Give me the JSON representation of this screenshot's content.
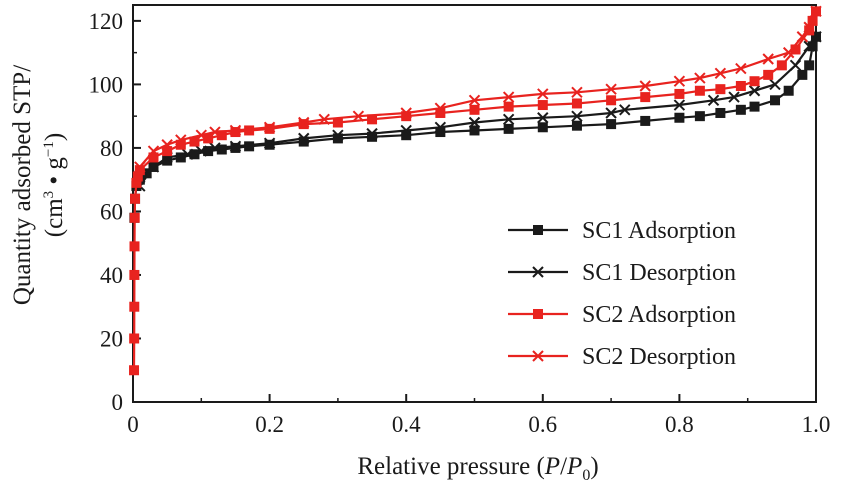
{
  "chart_data": {
    "type": "line",
    "xlabel": {
      "prefix": "Relative pressure (",
      "p": "P",
      "slash": "/",
      "p0": "P",
      "sub0": "0",
      "suffix": ")"
    },
    "ylabel": {
      "line1": "Quantity adsorbed STP/",
      "line2_prefix": "(cm",
      "sup3": "3",
      "line2_mid": " • g",
      "supm1": "−1",
      "line2_suffix": ")"
    },
    "xlim": [
      0,
      1.0
    ],
    "ylim": [
      0,
      125
    ],
    "xticks": [
      "0",
      "0.2",
      "0.4",
      "0.6",
      "0.8",
      "1.0"
    ],
    "xtick_values": [
      0,
      0.2,
      0.4,
      0.6,
      0.8,
      1.0
    ],
    "yticks": [
      "0",
      "20",
      "40",
      "60",
      "80",
      "100",
      "120"
    ],
    "ytick_values": [
      0,
      20,
      40,
      60,
      80,
      100,
      120
    ],
    "legend_position": "bottom-right",
    "grid": false,
    "series": [
      {
        "name": "SC1 Adsorption",
        "color": "#1a1a1a",
        "marker": "square",
        "points": [
          [
            0.002,
            58
          ],
          [
            0.003,
            64
          ],
          [
            0.005,
            68
          ],
          [
            0.01,
            70
          ],
          [
            0.02,
            72
          ],
          [
            0.03,
            74
          ],
          [
            0.05,
            76
          ],
          [
            0.07,
            77
          ],
          [
            0.09,
            78
          ],
          [
            0.11,
            79
          ],
          [
            0.13,
            79.5
          ],
          [
            0.15,
            80
          ],
          [
            0.17,
            80.5
          ],
          [
            0.2,
            81
          ],
          [
            0.25,
            82
          ],
          [
            0.3,
            83
          ],
          [
            0.35,
            83.5
          ],
          [
            0.4,
            84
          ],
          [
            0.45,
            85
          ],
          [
            0.5,
            85.5
          ],
          [
            0.55,
            86
          ],
          [
            0.6,
            86.5
          ],
          [
            0.65,
            87
          ],
          [
            0.7,
            87.5
          ],
          [
            0.75,
            88.5
          ],
          [
            0.8,
            89.5
          ],
          [
            0.83,
            90
          ],
          [
            0.86,
            91
          ],
          [
            0.89,
            92
          ],
          [
            0.91,
            93
          ],
          [
            0.94,
            95
          ],
          [
            0.96,
            98
          ],
          [
            0.98,
            103
          ],
          [
            0.99,
            106
          ],
          [
            0.995,
            112
          ],
          [
            1.0,
            115
          ]
        ]
      },
      {
        "name": "SC1 Desorption",
        "color": "#1a1a1a",
        "marker": "x",
        "points": [
          [
            0.01,
            68
          ],
          [
            0.03,
            74
          ],
          [
            0.05,
            77
          ],
          [
            0.08,
            78
          ],
          [
            0.1,
            79
          ],
          [
            0.12,
            80
          ],
          [
            0.15,
            80.5
          ],
          [
            0.2,
            81.5
          ],
          [
            0.25,
            83
          ],
          [
            0.3,
            84
          ],
          [
            0.35,
            84.5
          ],
          [
            0.4,
            85.5
          ],
          [
            0.45,
            86.5
          ],
          [
            0.5,
            88
          ],
          [
            0.55,
            89
          ],
          [
            0.6,
            89.5
          ],
          [
            0.65,
            90
          ],
          [
            0.7,
            91
          ],
          [
            0.72,
            92
          ],
          [
            0.8,
            93.5
          ],
          [
            0.85,
            95
          ],
          [
            0.88,
            96
          ],
          [
            0.91,
            98
          ],
          [
            0.94,
            100
          ],
          [
            0.97,
            106
          ],
          [
            0.99,
            112
          ],
          [
            1.0,
            115
          ]
        ]
      },
      {
        "name": "SC2 Adsorption",
        "color": "#e8231f",
        "marker": "square",
        "points": [
          [
            0.0015,
            10
          ],
          [
            0.0017,
            20
          ],
          [
            0.0019,
            30
          ],
          [
            0.002,
            40
          ],
          [
            0.0022,
            49
          ],
          [
            0.0025,
            58
          ],
          [
            0.003,
            64
          ],
          [
            0.005,
            69
          ],
          [
            0.007,
            71
          ],
          [
            0.01,
            73
          ],
          [
            0.03,
            77
          ],
          [
            0.05,
            79
          ],
          [
            0.07,
            81
          ],
          [
            0.09,
            82
          ],
          [
            0.11,
            83
          ],
          [
            0.13,
            84
          ],
          [
            0.15,
            85
          ],
          [
            0.17,
            85.5
          ],
          [
            0.2,
            86
          ],
          [
            0.25,
            87.5
          ],
          [
            0.3,
            88
          ],
          [
            0.35,
            89
          ],
          [
            0.4,
            90
          ],
          [
            0.45,
            91
          ],
          [
            0.5,
            92
          ],
          [
            0.55,
            93
          ],
          [
            0.6,
            93.5
          ],
          [
            0.65,
            94
          ],
          [
            0.7,
            95
          ],
          [
            0.75,
            96
          ],
          [
            0.8,
            97
          ],
          [
            0.83,
            98
          ],
          [
            0.86,
            98.5
          ],
          [
            0.89,
            99.5
          ],
          [
            0.91,
            101
          ],
          [
            0.93,
            103
          ],
          [
            0.95,
            106
          ],
          [
            0.97,
            111
          ],
          [
            0.99,
            117
          ],
          [
            0.995,
            120
          ],
          [
            1.0,
            123
          ]
        ]
      },
      {
        "name": "SC2 Desorption",
        "color": "#e8231f",
        "marker": "x",
        "points": [
          [
            0.01,
            74
          ],
          [
            0.03,
            79
          ],
          [
            0.05,
            81
          ],
          [
            0.07,
            82.5
          ],
          [
            0.1,
            84
          ],
          [
            0.12,
            85
          ],
          [
            0.15,
            85.5
          ],
          [
            0.2,
            86.5
          ],
          [
            0.25,
            88
          ],
          [
            0.28,
            89
          ],
          [
            0.33,
            90
          ],
          [
            0.4,
            91
          ],
          [
            0.45,
            92.5
          ],
          [
            0.5,
            95
          ],
          [
            0.55,
            96
          ],
          [
            0.6,
            97
          ],
          [
            0.65,
            97.5
          ],
          [
            0.7,
            98.5
          ],
          [
            0.75,
            99.5
          ],
          [
            0.8,
            101
          ],
          [
            0.83,
            102
          ],
          [
            0.86,
            103.5
          ],
          [
            0.89,
            105
          ],
          [
            0.93,
            108
          ],
          [
            0.96,
            110
          ],
          [
            0.98,
            115
          ],
          [
            0.99,
            118
          ],
          [
            1.0,
            123
          ]
        ]
      }
    ]
  }
}
